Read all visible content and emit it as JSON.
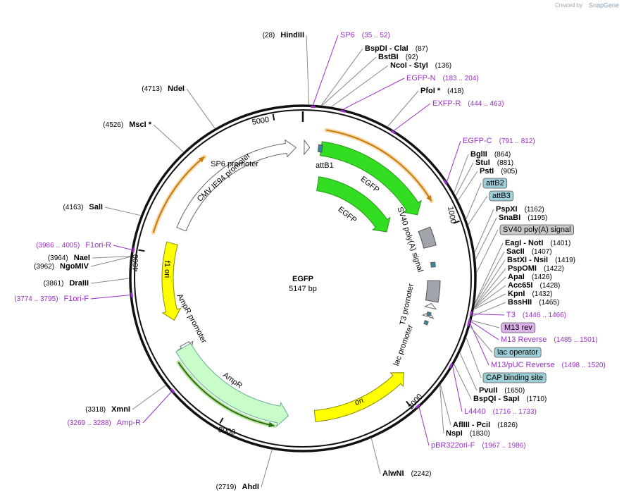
{
  "branding": {
    "prefix": "Created by",
    "product": "SnapGene"
  },
  "center": {
    "name": "EGFP",
    "length": "5147 bp"
  },
  "ruler": [
    "1000",
    "2000",
    "3000",
    "4000",
    "5000"
  ],
  "enzymes": [
    {
      "name": "HindIII",
      "pos": "(28)"
    },
    {
      "name": "BspDI - ClaI",
      "pos": "(87)"
    },
    {
      "name": "BstBI",
      "pos": "(92)"
    },
    {
      "name": "NcoI - StyI",
      "pos": "(136)"
    },
    {
      "name": "PfoI *",
      "pos": "(418)"
    },
    {
      "name": "BglII",
      "pos": "(864)"
    },
    {
      "name": "StuI",
      "pos": "(881)"
    },
    {
      "name": "PstI",
      "pos": "(905)"
    },
    {
      "name": "PspXI",
      "pos": "(1162)"
    },
    {
      "name": "SnaBI",
      "pos": "(1195)"
    },
    {
      "name": "EagI - NotI",
      "pos": "(1401)"
    },
    {
      "name": "SacII",
      "pos": "(1407)"
    },
    {
      "name": "BstXI - NsiI",
      "pos": "(1419)"
    },
    {
      "name": "PspOMI",
      "pos": "(1422)"
    },
    {
      "name": "ApaI",
      "pos": "(1426)"
    },
    {
      "name": "Acc65I",
      "pos": "(1428)"
    },
    {
      "name": "KpnI",
      "pos": "(1432)"
    },
    {
      "name": "BssHII",
      "pos": "(1465)"
    },
    {
      "name": "PvuII",
      "pos": "(1650)"
    },
    {
      "name": "BspQI - SapI",
      "pos": "(1710)"
    },
    {
      "name": "AflIII - PciI",
      "pos": "(1826)"
    },
    {
      "name": "NspI",
      "pos": "(1830)"
    },
    {
      "name": "AlwNI",
      "pos": "(2242)"
    },
    {
      "name": "AhdI",
      "pos": "(2719)"
    },
    {
      "name": "XmnI",
      "pos": "(3318)"
    },
    {
      "name": "DraIII",
      "pos": "(3861)"
    },
    {
      "name": "NgoMIV",
      "pos": "(3962)"
    },
    {
      "name": "NaeI",
      "pos": "(3964)"
    },
    {
      "name": "SalI",
      "pos": "(4163)"
    },
    {
      "name": "MscI *",
      "pos": "(4526)"
    },
    {
      "name": "NdeI",
      "pos": "(4713)"
    }
  ],
  "primers": [
    {
      "name": "SP6",
      "range": "(35 .. 52)"
    },
    {
      "name": "EGFP-N",
      "range": "(183 .. 204)"
    },
    {
      "name": "EXFP-R",
      "range": "(444 .. 463)"
    },
    {
      "name": "EGFP-C",
      "range": "(791 .. 812)"
    },
    {
      "name": "T3",
      "range": "(1446 .. 1466)"
    },
    {
      "name": "M13 Reverse",
      "range": "(1485 .. 1501)"
    },
    {
      "name": "M13/pUC Reverse",
      "range": "(1498 .. 1520)"
    },
    {
      "name": "L4440",
      "range": "(1716 .. 1733)"
    },
    {
      "name": "pBR322ori-F",
      "range": "(1967 .. 1986)"
    },
    {
      "name": "Amp-R",
      "range": "(3269 .. 3288)"
    },
    {
      "name": "F1ori-F",
      "range": "(3774 .. 3795)"
    },
    {
      "name": "F1ori-R",
      "range": "(3986 .. 4005)"
    }
  ],
  "boxed": [
    "attB2",
    "attB3",
    "SV40 poly(A) signal",
    "M13 rev",
    "lac operator",
    "CAP binding site"
  ],
  "features": [
    "SP6 promoter",
    "attB1",
    "EGFP",
    "EGFP",
    "SV40 poly(A) signal",
    "T3 promoter",
    "lac promoter",
    "ori",
    "AmpR",
    "AmpR promoter",
    "f1 ori",
    "CMV IE94 promoter"
  ]
}
